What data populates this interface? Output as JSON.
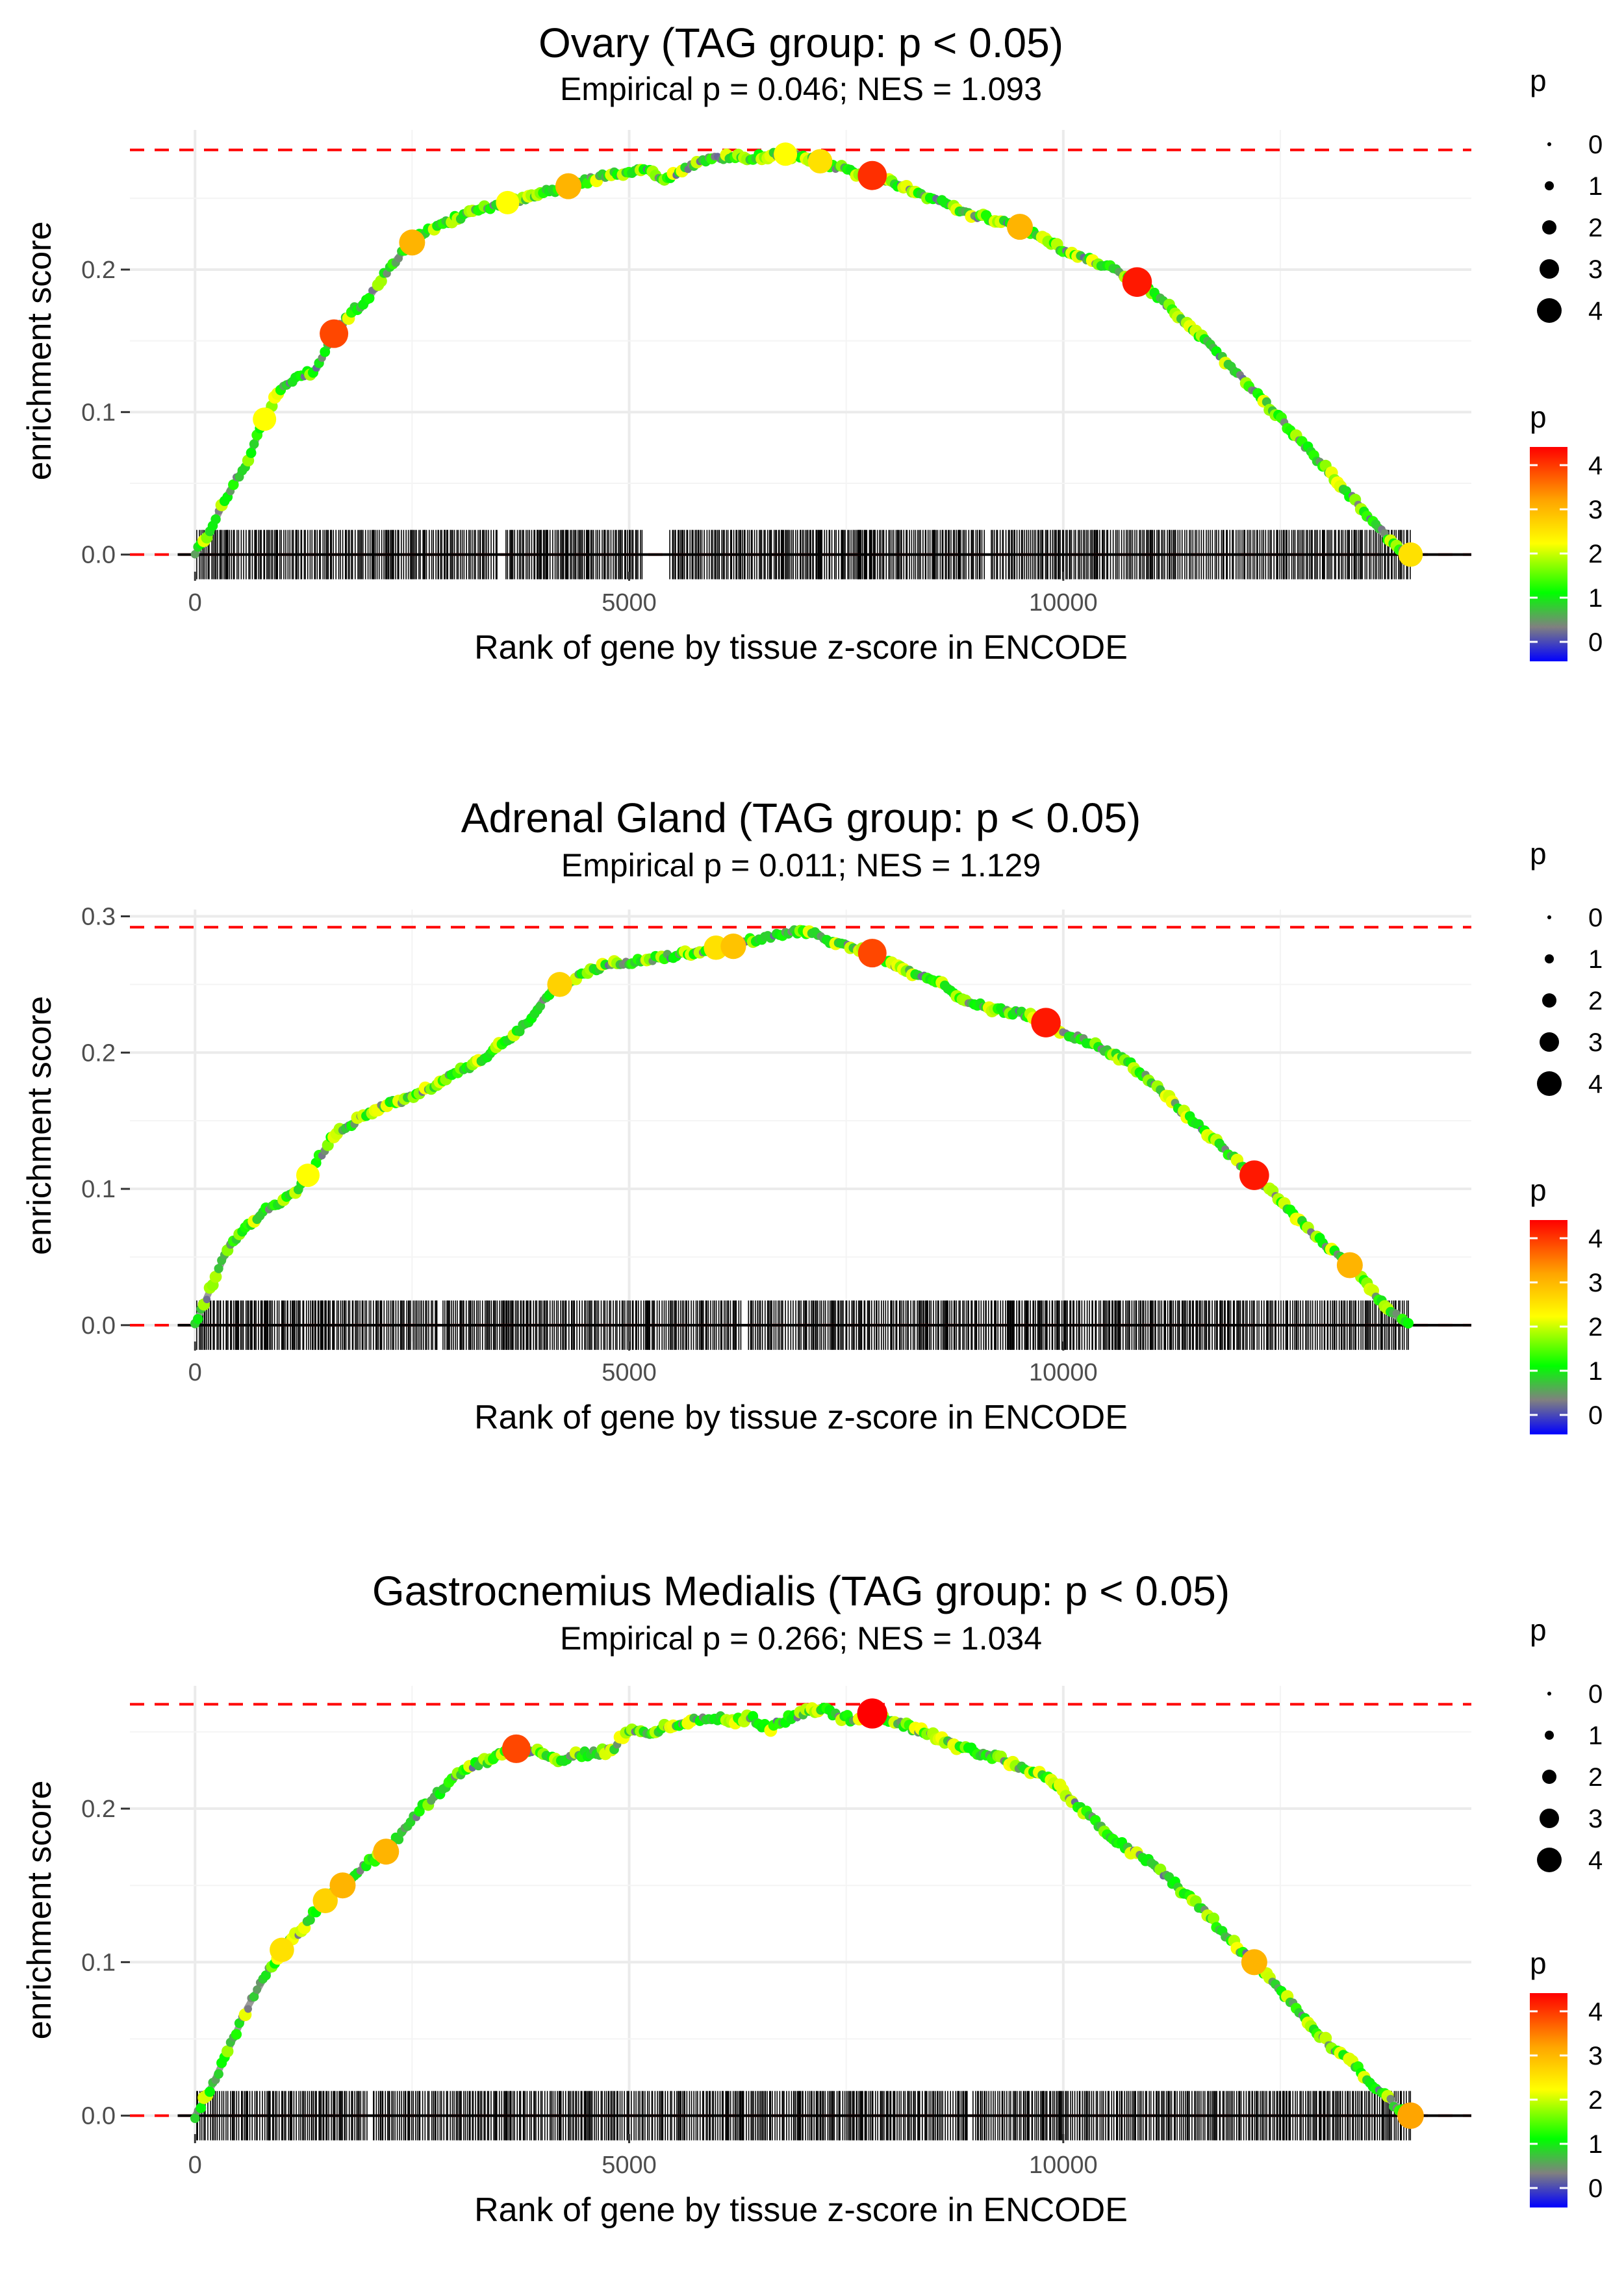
{
  "chart_data": [
    {
      "type": "line",
      "title": "Ovary (TAG group: p < 0.05)",
      "subtitle": "Empirical p = 0.046; NES = 1.093",
      "xlabel": "Rank of gene by tissue z-score in ENCODE",
      "ylabel": "enrichment score",
      "xlim": [
        -750,
        14700
      ],
      "ylim": [
        -0.012,
        0.298
      ],
      "x_ticks": [
        0,
        5000,
        10000
      ],
      "x_tick_labels": [
        "0",
        "5000",
        "10000"
      ],
      "y_ticks": [
        0.0,
        0.1,
        0.2
      ],
      "y_tick_labels": [
        "0.0",
        "0.1",
        "0.2"
      ],
      "max_es": 0.284,
      "grid": true,
      "gap_ranges": [
        [
          5150,
          5450
        ],
        [
          3500,
          3560
        ],
        [
          9100,
          9160
        ]
      ],
      "series": [
        {
          "name": "running enrichment score",
          "x": [
            0,
            200,
            400,
            600,
            800,
            1000,
            1200,
            1400,
            1600,
            1800,
            2000,
            2200,
            2400,
            2600,
            2800,
            3000,
            3200,
            3400,
            3600,
            3800,
            4000,
            4200,
            4400,
            4600,
            4800,
            5000,
            5200,
            5400,
            5600,
            5800,
            6000,
            6200,
            6400,
            6600,
            6800,
            7000,
            7200,
            7400,
            7600,
            7800,
            8000,
            8200,
            8400,
            8600,
            8800,
            9000,
            9200,
            9400,
            9600,
            9800,
            10000,
            10200,
            10400,
            10600,
            10800,
            11000,
            11200,
            11400,
            11600,
            11800,
            12000,
            12200,
            12400,
            12600,
            12800,
            13000,
            13200,
            13400,
            13600,
            13800,
            14000
          ],
          "y": [
            0.0,
            0.02,
            0.045,
            0.065,
            0.095,
            0.118,
            0.125,
            0.13,
            0.155,
            0.17,
            0.18,
            0.198,
            0.213,
            0.225,
            0.23,
            0.236,
            0.24,
            0.244,
            0.247,
            0.25,
            0.254,
            0.257,
            0.26,
            0.264,
            0.267,
            0.268,
            0.27,
            0.262,
            0.27,
            0.275,
            0.278,
            0.279,
            0.278,
            0.28,
            0.281,
            0.278,
            0.276,
            0.272,
            0.268,
            0.266,
            0.262,
            0.258,
            0.252,
            0.247,
            0.242,
            0.238,
            0.235,
            0.232,
            0.228,
            0.22,
            0.214,
            0.209,
            0.204,
            0.2,
            0.193,
            0.186,
            0.175,
            0.162,
            0.152,
            0.14,
            0.128,
            0.115,
            0.102,
            0.088,
            0.075,
            0.062,
            0.048,
            0.035,
            0.02,
            0.008,
            0.0
          ]
        }
      ],
      "highlight_points": {
        "x": [
          800,
          1600,
          2500,
          3600,
          4300,
          6800,
          7200,
          7800,
          9500,
          10850,
          14000
        ],
        "p": [
          3,
          4,
          3.5,
          3,
          3.5,
          3,
          3.2,
          4.1,
          3.5,
          4.2,
          3.2
        ]
      },
      "legend_size": {
        "title": "p",
        "labels": [
          "0",
          "1",
          "2",
          "3",
          "4"
        ]
      },
      "legend_color": {
        "title": "p",
        "labels": [
          "4",
          "3",
          "2",
          "1",
          "0"
        ],
        "colors": [
          "#ff0000",
          "#ffff00",
          "#00ff00",
          "#808080",
          "#0000ff"
        ]
      }
    },
    {
      "type": "line",
      "title": "Adrenal Gland (TAG group: p < 0.05)",
      "subtitle": "Empirical p = 0.011; NES = 1.129",
      "xlabel": "Rank of gene by tissue z-score in ENCODE",
      "ylabel": "enrichment score",
      "xlim": [
        -750,
        14700
      ],
      "ylim": [
        -0.012,
        0.305
      ],
      "x_ticks": [
        0,
        5000,
        10000
      ],
      "x_tick_labels": [
        "0",
        "5000",
        "10000"
      ],
      "y_ticks": [
        0.0,
        0.1,
        0.2,
        0.3
      ],
      "y_tick_labels": [
        "0.0",
        "0.1",
        "0.2",
        "0.3"
      ],
      "max_es": 0.292,
      "grid": true,
      "gap_ranges": [
        [
          2800,
          2850
        ],
        [
          6300,
          6360
        ]
      ],
      "series": [
        {
          "name": "running enrichment score",
          "x": [
            0,
            200,
            400,
            600,
            800,
            1000,
            1200,
            1400,
            1600,
            1800,
            2000,
            2200,
            2400,
            2600,
            2800,
            3000,
            3200,
            3400,
            3600,
            3800,
            4000,
            4200,
            4400,
            4600,
            4800,
            5000,
            5200,
            5400,
            5600,
            5800,
            6000,
            6200,
            6400,
            6600,
            6800,
            7000,
            7200,
            7400,
            7600,
            7800,
            8000,
            8200,
            8400,
            8600,
            8800,
            9000,
            9200,
            9400,
            9600,
            9800,
            10000,
            10200,
            10400,
            10600,
            10800,
            11000,
            11200,
            11400,
            11600,
            11800,
            12000,
            12200,
            12400,
            12600,
            12800,
            13000,
            13200,
            13400,
            13600,
            13800,
            14000
          ],
          "y": [
            0.0,
            0.03,
            0.06,
            0.072,
            0.085,
            0.09,
            0.1,
            0.12,
            0.14,
            0.148,
            0.155,
            0.162,
            0.165,
            0.17,
            0.178,
            0.185,
            0.19,
            0.2,
            0.21,
            0.22,
            0.238,
            0.25,
            0.255,
            0.262,
            0.265,
            0.266,
            0.268,
            0.27,
            0.272,
            0.275,
            0.277,
            0.278,
            0.282,
            0.285,
            0.288,
            0.29,
            0.285,
            0.28,
            0.277,
            0.273,
            0.265,
            0.26,
            0.255,
            0.25,
            0.242,
            0.235,
            0.232,
            0.23,
            0.227,
            0.222,
            0.215,
            0.21,
            0.205,
            0.198,
            0.19,
            0.18,
            0.168,
            0.155,
            0.145,
            0.132,
            0.12,
            0.11,
            0.098,
            0.085,
            0.072,
            0.06,
            0.05,
            0.038,
            0.022,
            0.008,
            0.0
          ]
        }
      ],
      "highlight_points": {
        "x": [
          1300,
          4200,
          6000,
          6200,
          7800,
          9800,
          12200,
          13300
        ],
        "p": [
          3,
          3.3,
          3.2,
          3.4,
          4,
          4.2,
          4.2,
          3.5
        ]
      },
      "legend_size": {
        "title": "p",
        "labels": [
          "0",
          "1",
          "2",
          "3",
          "4"
        ]
      },
      "legend_color": {
        "title": "p",
        "labels": [
          "4",
          "3",
          "2",
          "1",
          "0"
        ],
        "colors": [
          "#ff0000",
          "#ffff00",
          "#00ff00",
          "#808080",
          "#0000ff"
        ]
      }
    },
    {
      "type": "line",
      "title": "Gastrocnemius Medialis (TAG group: p < 0.05)",
      "subtitle": "Empirical p = 0.266; NES = 1.034",
      "xlabel": "Rank of gene by tissue z-score in ENCODE",
      "ylabel": "enrichment score",
      "xlim": [
        -750,
        14700
      ],
      "ylim": [
        -0.012,
        0.28
      ],
      "x_ticks": [
        0,
        5000,
        10000
      ],
      "x_tick_labels": [
        "0",
        "5000",
        "10000"
      ],
      "y_ticks": [
        0.0,
        0.1,
        0.2
      ],
      "y_tick_labels": [
        "0.0",
        "0.1",
        "0.2"
      ],
      "max_es": 0.268,
      "grid": true,
      "gap_ranges": [
        [
          2000,
          2040
        ],
        [
          8900,
          8950
        ]
      ],
      "series": [
        {
          "name": "running enrichment score",
          "x": [
            0,
            200,
            400,
            600,
            800,
            1000,
            1200,
            1400,
            1600,
            1800,
            2000,
            2200,
            2400,
            2600,
            2800,
            3000,
            3200,
            3400,
            3600,
            3800,
            4000,
            4200,
            4400,
            4600,
            4800,
            5000,
            5200,
            5400,
            5600,
            5800,
            6000,
            6200,
            6400,
            6600,
            6800,
            7000,
            7200,
            7400,
            7600,
            7800,
            8000,
            8200,
            8400,
            8600,
            8800,
            9000,
            9200,
            9400,
            9600,
            9800,
            10000,
            10200,
            10400,
            10600,
            10800,
            11000,
            11200,
            11400,
            11600,
            11800,
            12000,
            12200,
            12400,
            12600,
            12800,
            13000,
            13200,
            13400,
            13600,
            13800,
            14000
          ],
          "y": [
            0.0,
            0.02,
            0.045,
            0.07,
            0.09,
            0.108,
            0.12,
            0.135,
            0.145,
            0.155,
            0.165,
            0.172,
            0.185,
            0.2,
            0.21,
            0.222,
            0.228,
            0.232,
            0.238,
            0.24,
            0.235,
            0.232,
            0.235,
            0.236,
            0.238,
            0.252,
            0.248,
            0.253,
            0.256,
            0.258,
            0.259,
            0.257,
            0.26,
            0.252,
            0.258,
            0.262,
            0.266,
            0.26,
            0.258,
            0.262,
            0.258,
            0.254,
            0.25,
            0.245,
            0.24,
            0.237,
            0.234,
            0.23,
            0.225,
            0.22,
            0.212,
            0.2,
            0.19,
            0.18,
            0.172,
            0.165,
            0.155,
            0.145,
            0.135,
            0.122,
            0.11,
            0.1,
            0.088,
            0.075,
            0.062,
            0.05,
            0.04,
            0.03,
            0.018,
            0.008,
            0.0
          ]
        }
      ],
      "highlight_points": {
        "x": [
          1000,
          1500,
          1700,
          2200,
          3700,
          7800,
          12200,
          14000
        ],
        "p": [
          3.2,
          3.3,
          3.5,
          3.5,
          4,
          4.3,
          3.5,
          3.6
        ]
      },
      "legend_size": {
        "title": "p",
        "labels": [
          "0",
          "1",
          "2",
          "3",
          "4"
        ]
      },
      "legend_color": {
        "title": "p",
        "labels": [
          "4",
          "3",
          "2",
          "1",
          "0"
        ],
        "colors": [
          "#ff0000",
          "#ffff00",
          "#00ff00",
          "#808080",
          "#0000ff"
        ]
      }
    }
  ]
}
